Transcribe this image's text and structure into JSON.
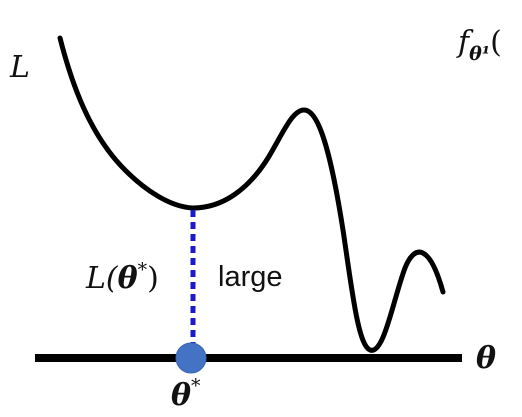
{
  "labels": {
    "y_axis": "L",
    "x_axis": "θ",
    "top_right_fragment_f": "f",
    "top_right_fragment_sub": "θ¹",
    "top_right_fragment_paren": "(",
    "loss_at_min_L": "L(",
    "loss_at_min_theta": "θ",
    "loss_at_min_star": "*",
    "loss_at_min_close": ")",
    "large": "large",
    "theta_star": "θ",
    "theta_star_sup": "*"
  },
  "colors": {
    "curve": "#000000",
    "axis": "#000000",
    "dotted_line": "#1a1acc",
    "point": "#4472c4"
  }
}
